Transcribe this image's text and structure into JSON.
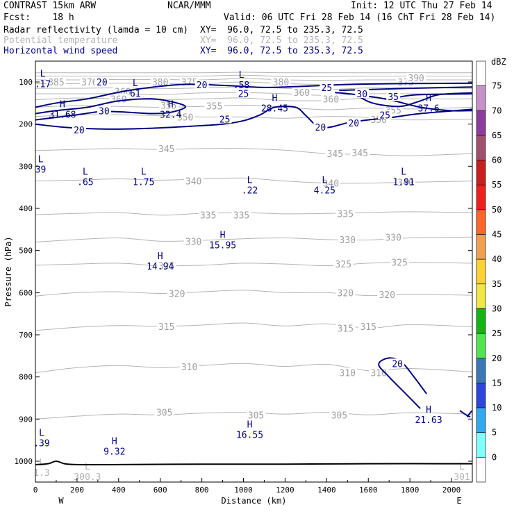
{
  "header": {
    "model": "CONTRAST 15km ARW",
    "org": "NCAR/MMM",
    "init": "Init: 12 UTC Thu 27 Feb 14",
    "fcst": "Fcst:    18 h",
    "valid": "Valid: 06 UTC Fri 28 Feb 14 (16 ChT Fri 28 Feb 14)",
    "fields": [
      {
        "name": "Radar reflectivity (lamda = 10 cm)",
        "xy": "XY=  96.0, 72.5 to 235.3, 72.5",
        "color": "#000000"
      },
      {
        "name": "Potential temperature",
        "xy": "XY=  96.0, 72.5 to 235.3, 72.5",
        "color": "#b4b4b4"
      },
      {
        "name": "Horizontal wind speed",
        "xy": "XY=  96.0, 72.5 to 235.3, 72.5",
        "color": "#000080"
      }
    ]
  },
  "colorbar": {
    "unit": "dBZ",
    "levels": [
      "75",
      "70",
      "65",
      "60",
      "55",
      "50",
      "45",
      "40",
      "35",
      "30",
      "25",
      "20",
      "15",
      "10",
      "5",
      "0"
    ],
    "colors": [
      "#ffffff",
      "#c890c8",
      "#8c3c9c",
      "#a0506c",
      "#c81e1e",
      "#f01e1e",
      "#ff6428",
      "#f0a050",
      "#fad232",
      "#f0e646",
      "#14b414",
      "#50e650",
      "#3c78b4",
      "#2d46dc",
      "#32aaf0",
      "#82ffff",
      "#ffffff"
    ]
  },
  "chart_data": {
    "type": "cross-section",
    "xlabel": "Distance (km)",
    "ylabel": "Pressure (hPa)",
    "xlim": [
      0,
      2100
    ],
    "ylim": [
      1050,
      60
    ],
    "y_scale": "linear (pressure decreasing upward)",
    "x_ticks": [
      "0",
      "200",
      "400",
      "600",
      "800",
      "1000",
      "1200",
      "1400",
      "1600",
      "1800",
      "2000"
    ],
    "y_ticks": [
      "100",
      "200",
      "300",
      "400",
      "500",
      "600",
      "700",
      "800",
      "900",
      "1000"
    ],
    "x_end_labels": {
      "left": "W",
      "right": "E"
    },
    "isentropes_theta_K": {
      "levels": [
        {
          "value": 305,
          "p": [
            900,
            893,
            888,
            890,
            886,
            884,
            888,
            884,
            890,
            885,
            888
          ]
        },
        {
          "value": 310,
          "p": [
            790,
            778,
            773,
            778,
            773,
            768,
            775,
            770,
            785,
            780,
            788
          ]
        },
        {
          "value": 315,
          "p": [
            690,
            682,
            678,
            680,
            677,
            672,
            679,
            674,
            684,
            676,
            681
          ]
        },
        {
          "value": 320,
          "p": [
            608,
            600,
            598,
            602,
            598,
            594,
            600,
            600,
            607,
            604,
            606
          ]
        },
        {
          "value": 325,
          "p": [
            535,
            532,
            530,
            536,
            535,
            530,
            532,
            536,
            530,
            528,
            530
          ]
        },
        {
          "value": 330,
          "p": [
            480,
            474,
            470,
            478,
            476,
            472,
            470,
            474,
            475,
            470,
            468
          ]
        },
        {
          "value": 335,
          "p": [
            415,
            412,
            410,
            416,
            412,
            410,
            413,
            412,
            410,
            408,
            410
          ]
        },
        {
          "value": 340,
          "p": [
            335,
            333,
            330,
            333,
            330,
            328,
            335,
            340,
            340,
            338,
            335
          ]
        },
        {
          "value": 345,
          "p": [
            263,
            260,
            258,
            260,
            258,
            258,
            262,
            270,
            272,
            275,
            270
          ]
        },
        {
          "value": 350,
          "p": [
            182,
            178,
            178,
            180,
            183,
            183,
            186,
            182,
            184,
            190,
            188
          ]
        },
        {
          "value": 355,
          "p": [
            160,
            156,
            158,
            160,
            158,
            155,
            160,
            166,
            162,
            164,
            160
          ]
        },
        {
          "value": 360,
          "p": [
            142,
            138,
            140,
            142,
            140,
            138,
            144,
            144,
            138,
            140,
            140
          ]
        },
        {
          "value": 365,
          "p": [
            128,
            128,
            128,
            130,
            126,
            125,
            128,
            132,
            128,
            128,
            128
          ]
        },
        {
          "value": 370,
          "p": [
            115,
            115,
            114,
            116,
            114,
            112,
            115,
            118,
            114,
            114,
            115
          ]
        },
        {
          "value": 375,
          "p": [
            104,
            104,
            103,
            104,
            104,
            100,
            104,
            106,
            104,
            104,
            104
          ]
        },
        {
          "value": 380,
          "p": [
            95,
            95,
            94,
            94,
            95,
            92,
            95,
            96,
            95,
            95,
            95
          ]
        },
        {
          "value": 385,
          "p": [
            86,
            86,
            86,
            86,
            86,
            84,
            87,
            87,
            86,
            86,
            86
          ]
        },
        {
          "value": 390,
          "p": [
            78,
            78,
            78,
            78,
            78,
            77,
            78,
            78,
            78,
            78,
            78
          ]
        }
      ],
      "x_km": [
        0,
        200,
        400,
        600,
        800,
        1000,
        1200,
        1400,
        1600,
        1800,
        2100
      ],
      "labels": [
        {
          "x": 100,
          "p": 100,
          "text": "385"
        },
        {
          "x": 260,
          "p": 100,
          "text": "370"
        },
        {
          "x": 600,
          "p": 100,
          "text": "380"
        },
        {
          "x": 740,
          "p": 100,
          "text": "375"
        },
        {
          "x": 1180,
          "p": 100,
          "text": "380"
        },
        {
          "x": 1780,
          "p": 100,
          "text": "375"
        },
        {
          "x": 1830,
          "p": 90,
          "text": "390"
        },
        {
          "x": 420,
          "p": 122,
          "text": "360"
        },
        {
          "x": 640,
          "p": 155,
          "text": "355"
        },
        {
          "x": 860,
          "p": 157,
          "text": "355"
        },
        {
          "x": 1280,
          "p": 125,
          "text": "360"
        },
        {
          "x": 1420,
          "p": 140,
          "text": "360"
        },
        {
          "x": 1720,
          "p": 167,
          "text": "355"
        },
        {
          "x": 1650,
          "p": 189,
          "text": "350"
        },
        {
          "x": 720,
          "p": 183,
          "text": "350"
        },
        {
          "x": 400,
          "p": 140,
          "text": "360"
        },
        {
          "x": 630,
          "p": 258,
          "text": "345"
        },
        {
          "x": 1440,
          "p": 270,
          "text": "345"
        },
        {
          "x": 1560,
          "p": 268,
          "text": "345"
        },
        {
          "x": 760,
          "p": 335,
          "text": "340"
        },
        {
          "x": 1420,
          "p": 340,
          "text": "340"
        },
        {
          "x": 1780,
          "p": 338,
          "text": "340"
        },
        {
          "x": 830,
          "p": 416,
          "text": "335"
        },
        {
          "x": 990,
          "p": 416,
          "text": "335"
        },
        {
          "x": 1490,
          "p": 412,
          "text": "335"
        },
        {
          "x": 760,
          "p": 478,
          "text": "330"
        },
        {
          "x": 1500,
          "p": 474,
          "text": "330"
        },
        {
          "x": 1720,
          "p": 468,
          "text": "330"
        },
        {
          "x": 630,
          "p": 536,
          "text": "325"
        },
        {
          "x": 1480,
          "p": 532,
          "text": "325"
        },
        {
          "x": 1750,
          "p": 528,
          "text": "325"
        },
        {
          "x": 680,
          "p": 602,
          "text": "320"
        },
        {
          "x": 1490,
          "p": 600,
          "text": "320"
        },
        {
          "x": 1690,
          "p": 604,
          "text": "320"
        },
        {
          "x": 630,
          "p": 680,
          "text": "315"
        },
        {
          "x": 1490,
          "p": 684,
          "text": "315"
        },
        {
          "x": 1600,
          "p": 680,
          "text": "315"
        },
        {
          "x": 740,
          "p": 776,
          "text": "310"
        },
        {
          "x": 1500,
          "p": 790,
          "text": "310"
        },
        {
          "x": 1650,
          "p": 790,
          "text": "310"
        },
        {
          "x": 620,
          "p": 884,
          "text": "305"
        },
        {
          "x": 1060,
          "p": 890,
          "text": "305"
        },
        {
          "x": 1460,
          "p": 890,
          "text": "305"
        }
      ]
    },
    "wind_speed_contours_m_s": {
      "color": "#000080",
      "labels": [
        {
          "x": 320,
          "p": 100,
          "text": "20"
        },
        {
          "x": 800,
          "p": 107,
          "text": "20"
        },
        {
          "x": 1000,
          "p": 127,
          "text": "25"
        },
        {
          "x": 1400,
          "p": 113,
          "text": "25"
        },
        {
          "x": 1570,
          "p": 128,
          "text": "30"
        },
        {
          "x": 1720,
          "p": 135,
          "text": "35"
        },
        {
          "x": 330,
          "p": 168,
          "text": "30"
        },
        {
          "x": 910,
          "p": 188,
          "text": "25"
        },
        {
          "x": 1680,
          "p": 178,
          "text": "25"
        },
        {
          "x": 210,
          "p": 214,
          "text": "20"
        },
        {
          "x": 1370,
          "p": 207,
          "text": "20"
        },
        {
          "x": 1530,
          "p": 197,
          "text": "20"
        },
        {
          "x": 1740,
          "p": 768,
          "text": "20"
        }
      ]
    },
    "extrema": [
      {
        "type": "H",
        "value": "31.68",
        "x": 130,
        "p": 160,
        "series": "wind"
      },
      {
        "type": "H",
        "value": "32.4",
        "x": 650,
        "p": 160,
        "series": "wind"
      },
      {
        "type": "H",
        "value": "28.45",
        "x": 1150,
        "p": 145,
        "series": "wind"
      },
      {
        "type": "H",
        "value": "37.6",
        "x": 1890,
        "p": 145,
        "series": "wind"
      },
      {
        "type": "L",
        "value": "61",
        "x": 480,
        "p": 110,
        "series": "wind"
      },
      {
        "type": "L",
        "value": ".58",
        "x": 990,
        "p": 90,
        "series": "wind"
      },
      {
        "type": "L",
        "value": ".17",
        "x": 35,
        "p": 88,
        "series": "wind"
      },
      {
        "type": "L",
        "value": "39",
        "x": 25,
        "p": 290,
        "series": "wind"
      },
      {
        "type": "L",
        "value": ".65",
        "x": 240,
        "p": 320,
        "series": "wind"
      },
      {
        "type": "L",
        "value": "1.75",
        "x": 520,
        "p": 320,
        "series": "wind"
      },
      {
        "type": "L",
        "value": ".22",
        "x": 1030,
        "p": 340,
        "series": "wind"
      },
      {
        "type": "L",
        "value": "4.25",
        "x": 1390,
        "p": 340,
        "series": "wind"
      },
      {
        "type": "L",
        "value": "1.91",
        "x": 1770,
        "p": 320,
        "series": "wind"
      },
      {
        "type": "H",
        "value": "15.95",
        "x": 900,
        "p": 470,
        "series": "wind"
      },
      {
        "type": "H",
        "value": "14.94",
        "x": 600,
        "p": 520,
        "series": "wind"
      },
      {
        "type": "H",
        "value": "21.63",
        "x": 1890,
        "p": 885,
        "series": "wind"
      },
      {
        "type": "H",
        "value": "16.55",
        "x": 1030,
        "p": 920,
        "series": "wind"
      },
      {
        "type": "L",
        "value": ".39",
        "x": 30,
        "p": 940,
        "series": "wind"
      },
      {
        "type": "H",
        "value": "9.32",
        "x": 380,
        "p": 960,
        "series": "wind"
      },
      {
        "type": "L",
        "value": "300.3",
        "x": 250,
        "p": 1020,
        "series": "theta"
      },
      {
        "type": "L",
        "value": "301",
        "x": 2050,
        "p": 1020,
        "series": "theta"
      },
      {
        "type": "L",
        "value": "1.3",
        "x": 30,
        "p": 1010,
        "series": "theta"
      }
    ],
    "surface_pressure_hPa": {
      "x": [
        0,
        60,
        100,
        140,
        200,
        400,
        800,
        1200,
        1600,
        2100
      ],
      "p": [
        1008,
        1006,
        1000,
        1006,
        1008,
        1008,
        1007,
        1007,
        1006,
        1006
      ]
    }
  }
}
